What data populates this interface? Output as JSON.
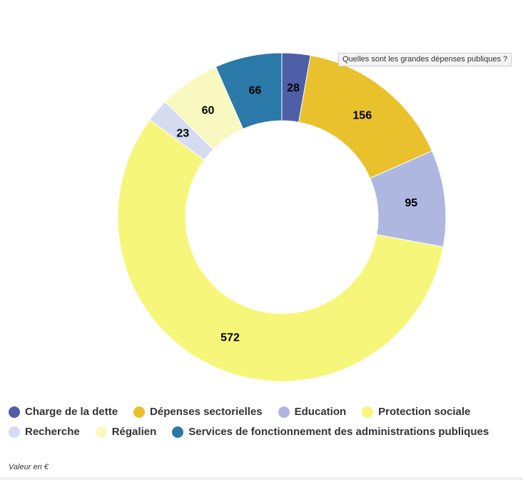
{
  "chart_data": {
    "type": "pie",
    "donut": true,
    "title": "",
    "categories": [
      "Charge de la dette",
      "Dépenses sectorielles",
      "Education",
      "Protection sociale",
      "Recherche",
      "Régalien",
      "Services de fonctionnement des administrations publiques"
    ],
    "values": [
      28,
      156,
      95,
      572,
      23,
      60,
      66
    ],
    "colors": [
      "#4e5ea7",
      "#e8c12c",
      "#aeb7e0",
      "#f6f67a",
      "#d5dcf1",
      "#f8f8c0",
      "#2b79a8"
    ],
    "legend_position": "bottom-left"
  },
  "tooltip": {
    "text": "Quelles sont les grandes dépenses publiques ?"
  },
  "footnote": "Valeur en €"
}
